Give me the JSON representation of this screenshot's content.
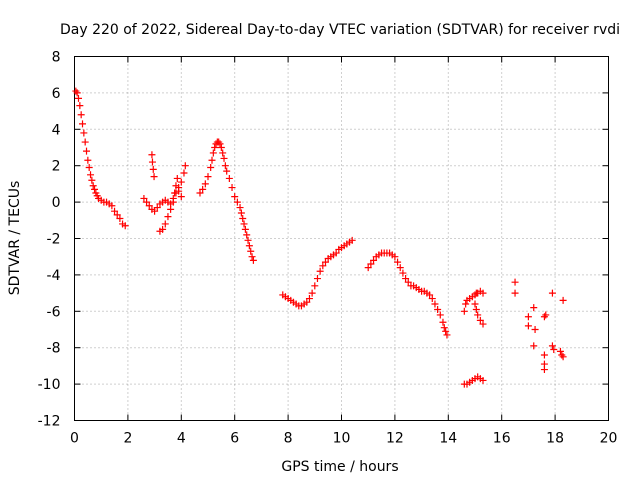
{
  "chart_data": {
    "type": "scatter",
    "title": "Day 220 of 2022, Sidereal Day-to-day VTEC variation (SDTVAR) for receiver rvdi",
    "xlabel": "GPS time / hours",
    "ylabel": "SDTVAR / TECUs",
    "xlim": [
      0,
      20
    ],
    "ylim": [
      -12,
      8
    ],
    "xticks": [
      0,
      2,
      4,
      6,
      8,
      10,
      12,
      14,
      16,
      18,
      20
    ],
    "yticks": [
      -12,
      -10,
      -8,
      -6,
      -4,
      -2,
      0,
      2,
      4,
      6,
      8
    ],
    "grid": true,
    "marker": "+",
    "color": "#ff0000",
    "series": [
      {
        "name": "segment-1",
        "points": [
          [
            0.05,
            6.1
          ],
          [
            0.1,
            6.0
          ],
          [
            0.15,
            5.7
          ],
          [
            0.2,
            5.3
          ],
          [
            0.25,
            4.8
          ],
          [
            0.3,
            4.3
          ],
          [
            0.35,
            3.8
          ],
          [
            0.4,
            3.3
          ],
          [
            0.45,
            2.8
          ],
          [
            0.5,
            2.3
          ],
          [
            0.55,
            1.9
          ],
          [
            0.6,
            1.5
          ],
          [
            0.65,
            1.2
          ],
          [
            0.7,
            0.9
          ],
          [
            0.75,
            0.7
          ],
          [
            0.8,
            0.5
          ],
          [
            0.85,
            0.35
          ],
          [
            0.9,
            0.2
          ],
          [
            1.0,
            0.1
          ],
          [
            1.1,
            0.0
          ],
          [
            1.2,
            0.0
          ],
          [
            1.3,
            -0.1
          ],
          [
            1.4,
            -0.2
          ],
          [
            1.5,
            -0.5
          ],
          [
            1.6,
            -0.7
          ],
          [
            1.7,
            -0.9
          ],
          [
            1.8,
            -1.2
          ],
          [
            1.9,
            -1.3
          ]
        ]
      },
      {
        "name": "segment-2",
        "points": [
          [
            2.6,
            0.2
          ],
          [
            2.7,
            0.0
          ],
          [
            2.8,
            -0.2
          ],
          [
            2.9,
            -0.4
          ],
          [
            3.0,
            -0.5
          ],
          [
            3.1,
            -0.3
          ],
          [
            3.2,
            -0.1
          ],
          [
            3.3,
            0.0
          ],
          [
            3.4,
            0.1
          ],
          [
            3.5,
            0.0
          ],
          [
            3.6,
            -0.1
          ],
          [
            3.7,
            0.2
          ],
          [
            3.8,
            0.5
          ],
          [
            3.9,
            0.8
          ],
          [
            4.0,
            1.1
          ],
          [
            4.1,
            1.6
          ],
          [
            4.15,
            2.0
          ],
          [
            2.9,
            2.6
          ],
          [
            2.92,
            2.2
          ],
          [
            2.95,
            1.8
          ],
          [
            2.98,
            1.4
          ]
        ]
      },
      {
        "name": "segment-3",
        "points": [
          [
            3.2,
            -1.6
          ],
          [
            3.3,
            -1.5
          ],
          [
            3.4,
            -1.2
          ],
          [
            3.5,
            -0.8
          ],
          [
            3.6,
            -0.4
          ],
          [
            3.7,
            0.0
          ],
          [
            3.75,
            0.5
          ],
          [
            3.8,
            0.9
          ],
          [
            3.85,
            1.3
          ],
          [
            3.9,
            0.6
          ],
          [
            4.0,
            0.3
          ]
        ]
      },
      {
        "name": "segment-4",
        "points": [
          [
            4.7,
            0.5
          ],
          [
            4.8,
            0.7
          ],
          [
            4.9,
            1.0
          ],
          [
            5.0,
            1.4
          ],
          [
            5.1,
            1.9
          ],
          [
            5.15,
            2.3
          ],
          [
            5.2,
            2.7
          ],
          [
            5.25,
            3.0
          ],
          [
            5.3,
            3.2
          ],
          [
            5.35,
            3.3
          ],
          [
            5.4,
            3.3
          ],
          [
            5.45,
            3.2
          ],
          [
            5.5,
            3.0
          ],
          [
            5.55,
            2.7
          ],
          [
            5.6,
            2.4
          ],
          [
            5.65,
            2.0
          ],
          [
            5.7,
            1.7
          ],
          [
            5.8,
            1.3
          ],
          [
            5.9,
            0.8
          ],
          [
            6.0,
            0.3
          ],
          [
            6.1,
            0.0
          ],
          [
            6.2,
            -0.3
          ],
          [
            6.25,
            -0.6
          ],
          [
            6.3,
            -0.9
          ],
          [
            6.35,
            -1.2
          ],
          [
            6.4,
            -1.5
          ],
          [
            6.45,
            -1.8
          ],
          [
            6.5,
            -2.1
          ],
          [
            6.55,
            -2.4
          ],
          [
            6.6,
            -2.7
          ],
          [
            6.65,
            -3.0
          ],
          [
            6.7,
            -3.2
          ]
        ]
      },
      {
        "name": "segment-5",
        "points": [
          [
            7.8,
            -5.1
          ],
          [
            7.9,
            -5.2
          ],
          [
            8.0,
            -5.3
          ],
          [
            8.1,
            -5.4
          ],
          [
            8.2,
            -5.5
          ],
          [
            8.3,
            -5.6
          ],
          [
            8.4,
            -5.7
          ],
          [
            8.5,
            -5.7
          ],
          [
            8.6,
            -5.6
          ],
          [
            8.7,
            -5.5
          ],
          [
            8.8,
            -5.3
          ],
          [
            8.9,
            -5.0
          ],
          [
            9.0,
            -4.6
          ],
          [
            9.1,
            -4.2
          ],
          [
            9.2,
            -3.8
          ],
          [
            9.3,
            -3.5
          ],
          [
            9.4,
            -3.3
          ],
          [
            9.5,
            -3.1
          ],
          [
            9.6,
            -3.0
          ],
          [
            9.7,
            -2.9
          ],
          [
            9.8,
            -2.8
          ],
          [
            9.9,
            -2.6
          ],
          [
            10.0,
            -2.5
          ],
          [
            10.1,
            -2.4
          ],
          [
            10.2,
            -2.3
          ],
          [
            10.3,
            -2.2
          ],
          [
            10.4,
            -2.1
          ]
        ]
      },
      {
        "name": "segment-6",
        "points": [
          [
            11.0,
            -3.6
          ],
          [
            11.1,
            -3.4
          ],
          [
            11.2,
            -3.2
          ],
          [
            11.3,
            -3.0
          ],
          [
            11.4,
            -2.9
          ],
          [
            11.5,
            -2.8
          ],
          [
            11.6,
            -2.8
          ],
          [
            11.7,
            -2.8
          ],
          [
            11.8,
            -2.8
          ],
          [
            11.9,
            -2.9
          ],
          [
            12.0,
            -3.0
          ],
          [
            12.1,
            -3.3
          ],
          [
            12.2,
            -3.6
          ],
          [
            12.3,
            -3.9
          ],
          [
            12.4,
            -4.2
          ],
          [
            12.5,
            -4.4
          ],
          [
            12.6,
            -4.6
          ],
          [
            12.7,
            -4.6
          ],
          [
            12.8,
            -4.7
          ],
          [
            12.9,
            -4.8
          ],
          [
            13.0,
            -4.9
          ],
          [
            13.1,
            -4.9
          ],
          [
            13.2,
            -5.0
          ],
          [
            13.3,
            -5.1
          ],
          [
            13.4,
            -5.3
          ],
          [
            13.5,
            -5.6
          ],
          [
            13.6,
            -5.9
          ],
          [
            13.7,
            -6.2
          ],
          [
            13.8,
            -6.6
          ],
          [
            13.85,
            -6.9
          ],
          [
            13.9,
            -7.1
          ],
          [
            13.95,
            -7.3
          ]
        ]
      },
      {
        "name": "segment-7",
        "points": [
          [
            14.6,
            -6.0
          ],
          [
            14.65,
            -5.6
          ],
          [
            14.7,
            -5.4
          ],
          [
            14.8,
            -5.3
          ],
          [
            14.9,
            -5.2
          ],
          [
            15.0,
            -5.1
          ],
          [
            15.05,
            -5.0
          ],
          [
            15.1,
            -5.0
          ],
          [
            15.2,
            -4.9
          ],
          [
            15.3,
            -5.0
          ],
          [
            15.0,
            -5.6
          ],
          [
            15.05,
            -5.9
          ],
          [
            15.1,
            -6.2
          ],
          [
            15.2,
            -6.5
          ],
          [
            15.3,
            -6.7
          ]
        ]
      },
      {
        "name": "segment-8",
        "points": [
          [
            14.6,
            -10.0
          ],
          [
            14.7,
            -10.0
          ],
          [
            14.8,
            -9.9
          ],
          [
            14.9,
            -9.8
          ],
          [
            15.0,
            -9.7
          ],
          [
            15.1,
            -9.6
          ],
          [
            15.2,
            -9.7
          ],
          [
            15.3,
            -9.8
          ]
        ]
      },
      {
        "name": "segment-9",
        "points": [
          [
            16.5,
            -4.4
          ],
          [
            16.5,
            -5.0
          ],
          [
            17.0,
            -6.3
          ],
          [
            17.0,
            -6.8
          ],
          [
            17.2,
            -5.8
          ],
          [
            17.25,
            -7.0
          ],
          [
            17.2,
            -7.9
          ],
          [
            17.6,
            -6.3
          ],
          [
            17.65,
            -6.2
          ],
          [
            17.6,
            -8.4
          ],
          [
            17.6,
            -8.9
          ],
          [
            17.6,
            -9.2
          ],
          [
            17.9,
            -5.0
          ],
          [
            17.9,
            -7.9
          ],
          [
            17.95,
            -8.1
          ],
          [
            18.2,
            -8.2
          ],
          [
            18.25,
            -8.4
          ],
          [
            18.3,
            -8.5
          ],
          [
            18.3,
            -5.4
          ]
        ]
      }
    ]
  }
}
